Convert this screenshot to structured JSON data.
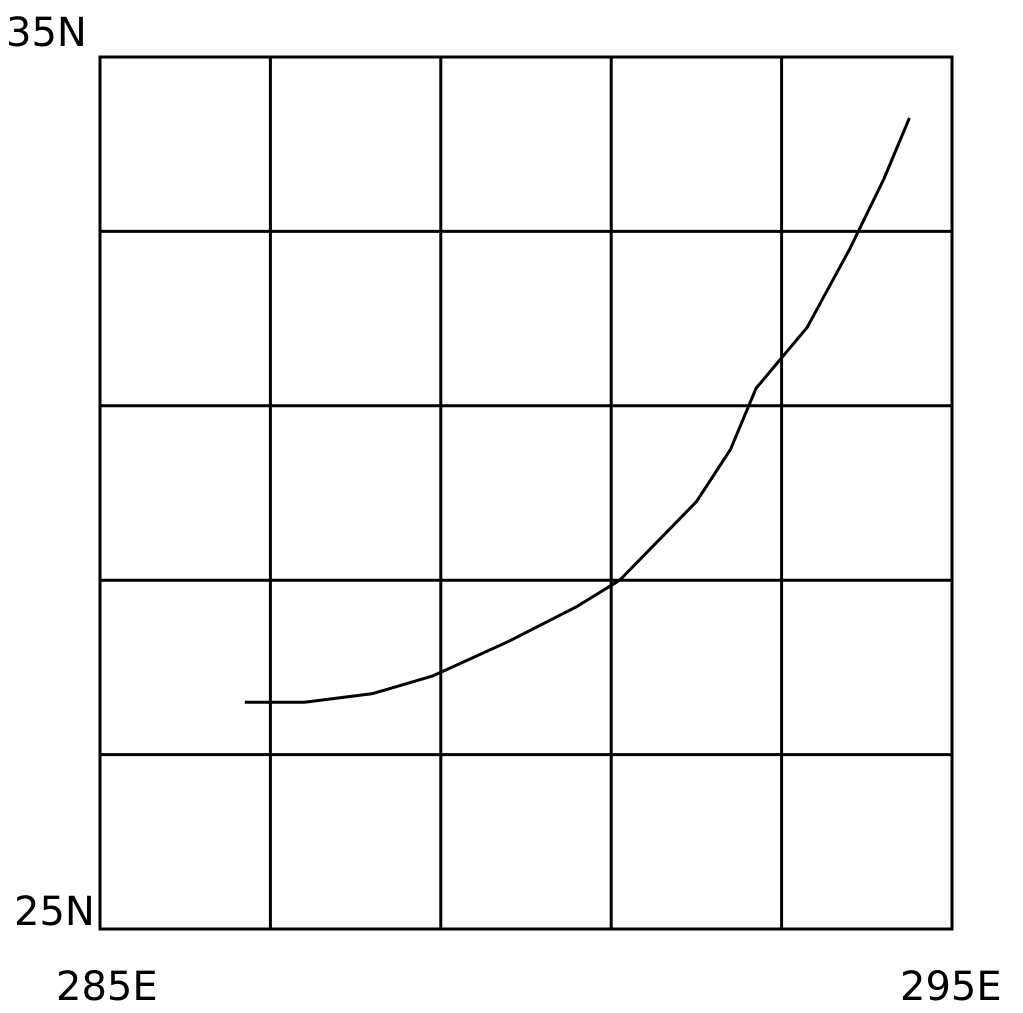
{
  "map": {
    "lat_top_label": "35N",
    "lat_bottom_label": "25N",
    "lon_left_label": "285E",
    "lon_right_label": "295E",
    "lon_range": [
      285,
      295
    ],
    "lat_range": [
      25,
      35
    ],
    "grid_lon_divisions": 5,
    "grid_lat_divisions": 5,
    "line_color": "#000000",
    "background_color": "#ffffff"
  },
  "chart_data": {
    "type": "line",
    "title": "",
    "xlabel": "",
    "ylabel": "",
    "xlim": [
      285,
      295
    ],
    "ylim": [
      25,
      35
    ],
    "grid": true,
    "series": [
      {
        "x": [
          286.7,
          287.4,
          288.2,
          288.9,
          289.8,
          290.6,
          291.1,
          291.5,
          292.0,
          292.4,
          292.7,
          293.3,
          293.8,
          294.2,
          294.5
        ],
        "y": [
          27.6,
          27.6,
          27.7,
          27.9,
          28.3,
          28.7,
          29.0,
          29.4,
          29.9,
          30.5,
          31.2,
          31.9,
          32.8,
          33.6,
          34.3
        ]
      }
    ]
  }
}
